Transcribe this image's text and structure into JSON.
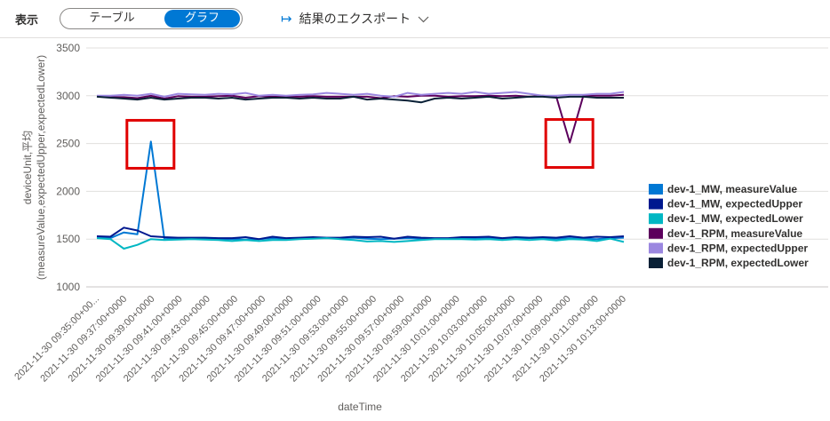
{
  "toolbar": {
    "view_label": "表示",
    "tab_table": "テーブル",
    "tab_graph": "グラフ",
    "export_label": "結果のエクスポート",
    "export_icon": "arrow-to-bar-icon",
    "dropdown_icon": "chevron-down-icon",
    "accent_color": "#0078d4"
  },
  "chart_data": {
    "type": "line",
    "xlabel": "dateTime",
    "ylabel_lines": [
      "deviceUnit,平均",
      "(measureValue,expectedUpper,expectedLower)"
    ],
    "ylim": [
      1000,
      3500
    ],
    "yticks": [
      1000,
      1500,
      2000,
      2500,
      3000,
      3500
    ],
    "grid": true,
    "legend_position": "right",
    "x_tick_labels": [
      "2021-11-30 09:35:00+00...",
      "2021-11-30 09:37:00+0000",
      "2021-11-30 09:39:00+0000",
      "2021-11-30 09:41:00+0000",
      "2021-11-30 09:43:00+0000",
      "2021-11-30 09:45:00+0000",
      "2021-11-30 09:47:00+0000",
      "2021-11-30 09:49:00+0000",
      "2021-11-30 09:51:00+0000",
      "2021-11-30 09:53:00+0000",
      "2021-11-30 09:55:00+0000",
      "2021-11-30 09:57:00+0000",
      "2021-11-30 09:59:00+0000",
      "2021-11-30 10:01:00+0000",
      "2021-11-30 10:03:00+0000",
      "2021-11-30 10:05:00+0000",
      "2021-11-30 10:07:00+0000",
      "2021-11-30 10:09:00+0000",
      "2021-11-30 10:11:00+0000",
      "2021-11-30 10:13:00+0000"
    ],
    "series": [
      {
        "name": "dev-1_MW, measureValue",
        "color": "#0078d4",
        "values": [
          1520,
          1510,
          1570,
          1550,
          2520,
          1500,
          1510,
          1510,
          1505,
          1500,
          1500,
          1495,
          1500,
          1510,
          1505,
          1505,
          1510,
          1510,
          1510,
          1515,
          1505,
          1500,
          1505,
          1510,
          1505,
          1505,
          1505,
          1505,
          1505,
          1510,
          1505,
          1505,
          1510,
          1510,
          1505,
          1510,
          1505,
          1500,
          1510,
          1515
        ]
      },
      {
        "name": "dev-1_MW, expectedUpper",
        "color": "#00188f",
        "values": [
          1530,
          1525,
          1620,
          1590,
          1530,
          1520,
          1515,
          1515,
          1515,
          1510,
          1510,
          1520,
          1500,
          1525,
          1510,
          1515,
          1520,
          1515,
          1515,
          1525,
          1520,
          1525,
          1505,
          1525,
          1515,
          1510,
          1510,
          1520,
          1520,
          1525,
          1510,
          1520,
          1515,
          1520,
          1515,
          1530,
          1515,
          1525,
          1520,
          1530
        ]
      },
      {
        "name": "dev-1_MW, expectedLower",
        "color": "#00b7c3",
        "values": [
          1510,
          1500,
          1400,
          1440,
          1500,
          1490,
          1495,
          1500,
          1495,
          1490,
          1480,
          1490,
          1480,
          1490,
          1490,
          1500,
          1505,
          1510,
          1500,
          1490,
          1475,
          1480,
          1470,
          1480,
          1490,
          1500,
          1500,
          1500,
          1495,
          1500,
          1490,
          1500,
          1490,
          1500,
          1485,
          1500,
          1495,
          1480,
          1505,
          1470
        ]
      },
      {
        "name": "dev-1_RPM, measureValue",
        "color": "#5c005c",
        "values": [
          2995,
          2985,
          2985,
          2975,
          3000,
          2970,
          2995,
          2990,
          2990,
          2995,
          3000,
          2980,
          2995,
          2990,
          2990,
          2990,
          2995,
          2990,
          2990,
          2990,
          2990,
          2975,
          2995,
          2990,
          3000,
          3000,
          2990,
          2995,
          2995,
          3000,
          2995,
          3000,
          2990,
          3000,
          2990,
          2510,
          3000,
          3000,
          3000,
          3010
        ]
      },
      {
        "name": "dev-1_RPM, expectedUpper",
        "color": "#9b87e0",
        "values": [
          3000,
          3000,
          3010,
          3000,
          3020,
          2990,
          3020,
          3015,
          3010,
          3020,
          3015,
          3030,
          3000,
          3010,
          3000,
          3010,
          3015,
          3030,
          3020,
          3010,
          3020,
          3000,
          2990,
          3030,
          3010,
          3020,
          3030,
          3020,
          3040,
          3020,
          3030,
          3040,
          3020,
          3000,
          3000,
          3010,
          3010,
          3020,
          3020,
          3040
        ]
      },
      {
        "name": "dev-1_RPM, expectedLower",
        "color": "#092036",
        "values": [
          2990,
          2980,
          2970,
          2960,
          2980,
          2960,
          2970,
          2980,
          2980,
          2970,
          2980,
          2960,
          2970,
          2980,
          2980,
          2970,
          2980,
          2970,
          2970,
          2990,
          2960,
          2970,
          2960,
          2950,
          2930,
          2970,
          2980,
          2970,
          2980,
          2990,
          2970,
          2980,
          2990,
          2990,
          2980,
          2990,
          2990,
          2980,
          2980,
          2980
        ]
      }
    ],
    "highlight_color": "#e00000"
  }
}
